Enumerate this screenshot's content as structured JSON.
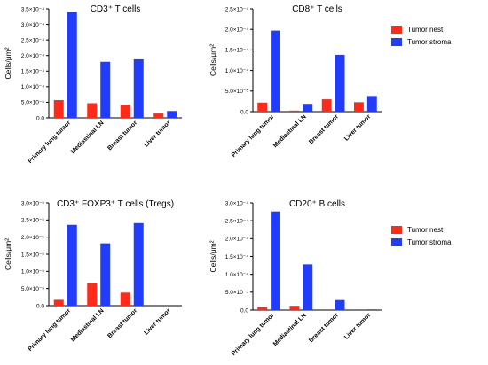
{
  "colors": {
    "tumor_nest": "#ff2a1a",
    "tumor_stroma": "#1f3cff"
  },
  "chart_data": [
    {
      "type": "bar",
      "title": "CD3⁺ T cells",
      "ylabel": "Cells/μm²",
      "xlabel": "",
      "categories": [
        "Primary lung tumor",
        "Mediastinal LN",
        "Breast tumor",
        "Liver tumor"
      ],
      "yticks": [
        "0.0",
        "5.0×10⁻⁵",
        "1.0×10⁻⁴",
        "1.5×10⁻⁴",
        "2.0×10⁻⁴",
        "2.5×10⁻⁴",
        "3.0×10⁻⁴",
        "3.5×10⁻⁴"
      ],
      "ylim": [
        0,
        0.00035
      ],
      "legend": "none",
      "series": [
        {
          "name": "Tumor nest",
          "values": [
            5.7e-05,
            4.7e-05,
            4.2e-05,
            1.4e-05
          ]
        },
        {
          "name": "Tumor stroma",
          "values": [
            0.00034,
            0.00018,
            0.000188,
            2.2e-05
          ]
        }
      ]
    },
    {
      "type": "bar",
      "title": "CD8⁺ T cells",
      "ylabel": "Cells/μm²",
      "xlabel": "",
      "categories": [
        "Primary lung tumor",
        "Mediastinal LN",
        "Breast tumor",
        "Liver tumor"
      ],
      "yticks": [
        "0.0",
        "5.0×10⁻⁵",
        "1.0×10⁻⁴",
        "1.5×10⁻⁴",
        "2.0×10⁻⁴",
        "2.5×10⁻⁴"
      ],
      "ylim": [
        0,
        0.00025
      ],
      "legend": "right",
      "series": [
        {
          "name": "Tumor nest",
          "values": [
            2.2e-05,
            2.5e-06,
            3e-05,
            2.3e-05
          ]
        },
        {
          "name": "Tumor stroma",
          "values": [
            0.000197,
            1.9e-05,
            0.000138,
            3.8e-05
          ]
        }
      ]
    },
    {
      "type": "bar",
      "title": "CD3⁺ FOXP3⁺ T cells (Tregs)",
      "ylabel": "Cells/μm²",
      "xlabel": "",
      "categories": [
        "Primary lung tumor",
        "Mediastinal LN",
        "Breast tumor",
        "Liver tumor"
      ],
      "yticks": [
        "0.0",
        "5.0×10⁻⁶",
        "1.0×10⁻⁵",
        "1.5×10⁻⁵",
        "2.0×10⁻⁵",
        "2.5×10⁻⁵",
        "3.0×10⁻⁵"
      ],
      "ylim": [
        0,
        3e-05
      ],
      "legend": "none",
      "series": [
        {
          "name": "Tumor nest",
          "values": [
            1.7e-06,
            6.5e-06,
            3.8e-06,
            0
          ]
        },
        {
          "name": "Tumor stroma",
          "values": [
            2.36e-05,
            1.82e-05,
            2.41e-05,
            0
          ]
        }
      ]
    },
    {
      "type": "bar",
      "title": "CD20⁺ B cells",
      "ylabel": "Cells/μm²",
      "xlabel": "",
      "categories": [
        "Primary lung tumor",
        "Mediastinal LN",
        "Breast tumor",
        "Liver tumor"
      ],
      "yticks": [
        "0.0",
        "5.0×10⁻⁵",
        "1.0×10⁻⁴",
        "1.5×10⁻⁴",
        "2.0×10⁻⁴",
        "2.5×10⁻⁴",
        "3.0×10⁻⁴"
      ],
      "ylim": [
        0,
        0.0003
      ],
      "legend": "right",
      "series": [
        {
          "name": "Tumor nest",
          "values": [
            8e-06,
            1.2e-05,
            0,
            0
          ]
        },
        {
          "name": "Tumor stroma",
          "values": [
            0.000276,
            0.000128,
            2.8e-05,
            2e-06
          ]
        }
      ]
    }
  ]
}
